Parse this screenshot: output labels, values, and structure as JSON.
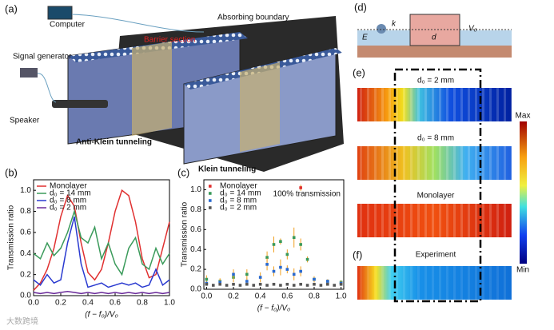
{
  "panels": {
    "a": {
      "label": "(a)",
      "computer": "Computer",
      "signal": "Signal generator",
      "speaker": "Speaker",
      "boundary": "Absorbing boundary",
      "barrier": "Barrier section",
      "anti": "Anti-Klein tunneling",
      "klein": "Klein tunneling"
    },
    "b": {
      "label": "(b)"
    },
    "c": {
      "label": "(c)"
    },
    "d": {
      "label": "(d)",
      "E": "E",
      "k": "k",
      "d": "d",
      "V": "V₀"
    },
    "e": {
      "label": "(e)",
      "r1": "d₀ = 2 mm",
      "r2": "d₀ = 8 mm",
      "r3": "Monolayer",
      "max": "Max",
      "min": "Min"
    },
    "f": {
      "label": "(f)",
      "r1": "Experiment"
    },
    "watermark": "大数跨境"
  },
  "chart_data": [
    {
      "type": "line",
      "xlabel": "(f − f₀)/V₀",
      "ylabel": "Transmission ratio",
      "x": [
        0,
        0.05,
        0.1,
        0.15,
        0.2,
        0.25,
        0.3,
        0.35,
        0.4,
        0.45,
        0.5,
        0.55,
        0.6,
        0.65,
        0.7,
        0.75,
        0.8,
        0.85,
        0.9,
        0.95,
        1.0
      ],
      "series": [
        {
          "name": "Monolayer",
          "color": "#e03030",
          "values": [
            0.05,
            0.12,
            0.25,
            0.45,
            0.75,
            0.95,
            0.85,
            0.5,
            0.22,
            0.15,
            0.25,
            0.5,
            0.8,
            1.0,
            0.95,
            0.7,
            0.35,
            0.17,
            0.2,
            0.45,
            0.7
          ]
        },
        {
          "name": "d₀ = 14 mm",
          "color": "#3a9a5a",
          "values": [
            0.4,
            0.35,
            0.5,
            0.38,
            0.45,
            0.6,
            0.8,
            0.55,
            0.5,
            0.65,
            0.35,
            0.5,
            0.3,
            0.2,
            0.45,
            0.55,
            0.3,
            0.25,
            0.45,
            0.3,
            0.4
          ]
        },
        {
          "name": "d₀ = 8 mm",
          "color": "#2a3ad0",
          "values": [
            0.15,
            0.1,
            0.2,
            0.12,
            0.15,
            0.5,
            0.75,
            0.3,
            0.08,
            0.1,
            0.12,
            0.08,
            0.1,
            0.12,
            0.1,
            0.12,
            0.08,
            0.1,
            0.25,
            0.1,
            0.15
          ]
        },
        {
          "name": "d₀ = 2 mm",
          "color": "#6a2a9a",
          "values": [
            0.03,
            0.02,
            0.03,
            0.02,
            0.03,
            0.04,
            0.03,
            0.02,
            0.03,
            0.02,
            0.03,
            0.02,
            0.03,
            0.02,
            0.03,
            0.02,
            0.03,
            0.02,
            0.03,
            0.02,
            0.03
          ]
        }
      ],
      "xlim": [
        0,
        1
      ],
      "ylim": [
        0,
        1.1
      ],
      "xticks": [
        {
          "value": 0,
          "label": "0.0"
        },
        {
          "value": 0.2,
          "label": "0.2"
        },
        {
          "value": 0.4,
          "label": "0.4"
        },
        {
          "value": 0.6,
          "label": "0.6"
        },
        {
          "value": 0.8,
          "label": "0.8"
        },
        {
          "value": 1,
          "label": "1.0"
        }
      ],
      "yticks": [
        {
          "value": 0,
          "label": "0.0"
        },
        {
          "value": 0.2,
          "label": "0.2"
        },
        {
          "value": 0.4,
          "label": "0.4"
        },
        {
          "value": 0.6,
          "label": "0.6"
        },
        {
          "value": 0.8,
          "label": "0.8"
        },
        {
          "value": 1,
          "label": "1.0"
        }
      ]
    },
    {
      "type": "scatter",
      "xlabel": "(f − f₀)/V₀",
      "ylabel": "Transmission ratio",
      "annotation": "100% transmission",
      "error_color": "#f0a020",
      "series": [
        {
          "name": "Monolayer",
          "color": "#e03030",
          "x": [
            0.7
          ],
          "values": [
            1.02
          ],
          "errors": [
            0.03
          ]
        },
        {
          "name": "d₀ = 14 mm",
          "color": "#3a9a5a",
          "x": [
            0,
            0.1,
            0.2,
            0.3,
            0.45,
            0.5,
            0.55,
            0.6,
            0.65,
            0.7,
            0.75,
            0.8,
            0.9,
            1.0
          ],
          "values": [
            0.1,
            0.08,
            0.12,
            0.15,
            0.32,
            0.45,
            0.48,
            0.35,
            0.52,
            0.45,
            0.3,
            0.1,
            0.08,
            0.07
          ],
          "errors": [
            0.04,
            0.03,
            0.05,
            0.05,
            0.06,
            0.08,
            0.03,
            0.05,
            0.1,
            0.06,
            0.03,
            0.03,
            0.02,
            0.02
          ]
        },
        {
          "name": "d₀ = 8 mm",
          "color": "#2a6ad0",
          "x": [
            0,
            0.1,
            0.2,
            0.3,
            0.4,
            0.45,
            0.5,
            0.55,
            0.6,
            0.65,
            0.7,
            0.8,
            0.9,
            1.0
          ],
          "values": [
            0.06,
            0.07,
            0.15,
            0.08,
            0.12,
            0.25,
            0.18,
            0.22,
            0.2,
            0.15,
            0.18,
            0.1,
            0.08,
            0.06
          ],
          "errors": [
            0.02,
            0.03,
            0.05,
            0.03,
            0.05,
            0.06,
            0.05,
            0.08,
            0.04,
            0.06,
            0.05,
            0.03,
            0.02,
            0.02
          ]
        },
        {
          "name": "d₀ = 2 mm",
          "color": "#555555",
          "x": [
            0,
            0.05,
            0.1,
            0.15,
            0.2,
            0.25,
            0.3,
            0.35,
            0.4,
            0.45,
            0.5,
            0.55,
            0.6,
            0.65,
            0.7,
            0.75,
            0.8,
            0.85,
            0.9,
            0.95,
            1.0
          ],
          "values": [
            0.05,
            0.04,
            0.05,
            0.04,
            0.05,
            0.04,
            0.05,
            0.04,
            0.05,
            0.04,
            0.05,
            0.04,
            0.05,
            0.04,
            0.05,
            0.04,
            0.05,
            0.04,
            0.05,
            0.04,
            0.05
          ],
          "errors": [
            0.01,
            0.01,
            0.01,
            0.01,
            0.01,
            0.01,
            0.01,
            0.01,
            0.01,
            0.01,
            0.01,
            0.01,
            0.01,
            0.01,
            0.01,
            0.01,
            0.01,
            0.01,
            0.01,
            0.01,
            0.01
          ]
        }
      ],
      "xlim": [
        -0.02,
        1.02
      ],
      "ylim": [
        0,
        1.1
      ],
      "xticks": [
        {
          "value": 0,
          "label": "0.0"
        },
        {
          "value": 0.2,
          "label": "0.2"
        },
        {
          "value": 0.4,
          "label": "0.4"
        },
        {
          "value": 0.6,
          "label": "0.6"
        },
        {
          "value": 0.8,
          "label": "0.8"
        },
        {
          "value": 1,
          "label": "1.0"
        }
      ],
      "yticks": [
        {
          "value": 0,
          "label": "0.0"
        },
        {
          "value": 0.2,
          "label": "0.2"
        },
        {
          "value": 0.4,
          "label": "0.4"
        },
        {
          "value": 0.6,
          "label": "0.6"
        },
        {
          "value": 0.8,
          "label": "0.8"
        },
        {
          "value": 1,
          "label": "1.0"
        }
      ]
    }
  ]
}
